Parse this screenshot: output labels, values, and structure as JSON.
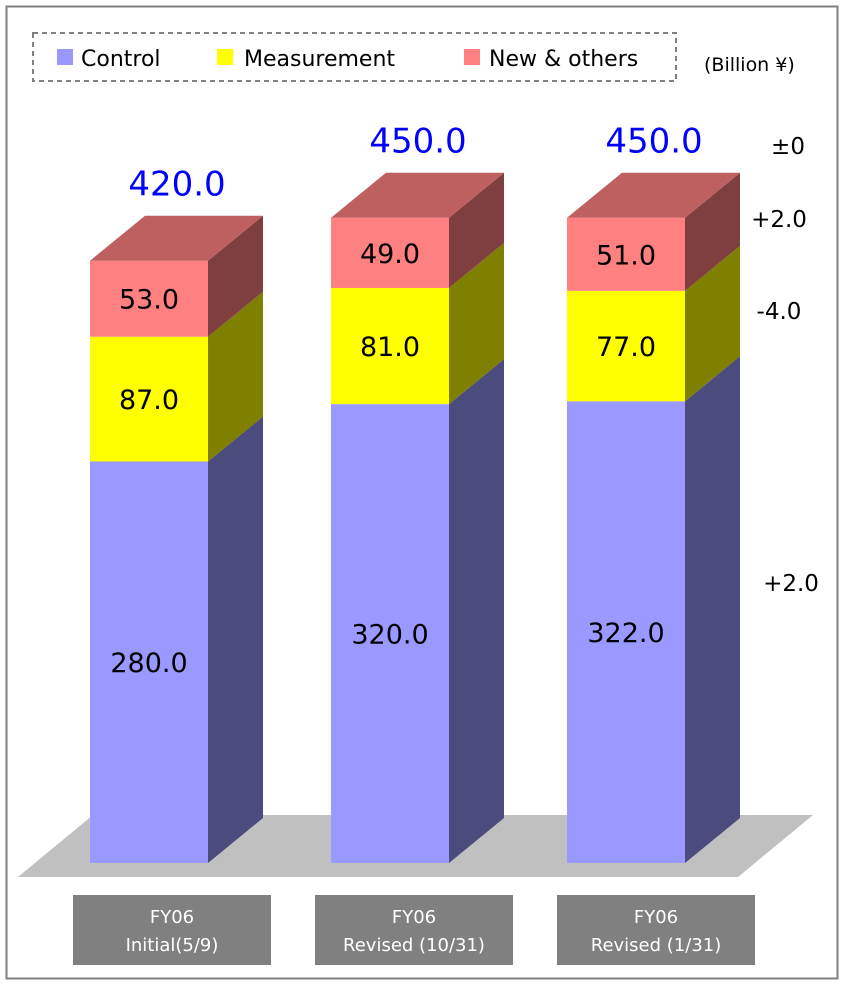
{
  "chart_data": {
    "type": "bar",
    "stacked": true,
    "three_d": true,
    "unit": "(Billion ¥)",
    "categories": [
      {
        "line1": "FY06",
        "line2": "Initial(5/9)"
      },
      {
        "line1": "FY06",
        "line2": "Revised (10/31)"
      },
      {
        "line1": "FY06",
        "line2": "Revised (1/31)"
      }
    ],
    "series": [
      {
        "name": "Control",
        "color": "#9999ff",
        "side_color": "#4b4b7d",
        "values": [
          280.0,
          320.0,
          322.0
        ],
        "labels": [
          "280.0",
          "320.0",
          "322.0"
        ]
      },
      {
        "name": "Measurement",
        "color": "#ffff00",
        "side_color": "#7f7f00",
        "values": [
          87.0,
          81.0,
          77.0
        ],
        "labels": [
          "87.0",
          "81.0",
          "77.0"
        ]
      },
      {
        "name": "New & others",
        "color": "#ff8080",
        "side_color": "#7f3f3f",
        "values": [
          53.0,
          49.0,
          51.0
        ],
        "labels": [
          "53.0",
          "49.0",
          "51.0"
        ]
      }
    ],
    "totals": [
      "420.0",
      "450.0",
      "450.0"
    ],
    "total_color": "#0000ff",
    "changes": {
      "total": "±0",
      "new_others": "+2.0",
      "measurement": "-4.0",
      "control": "+2.0"
    },
    "legend_position": "top",
    "grid": false
  }
}
